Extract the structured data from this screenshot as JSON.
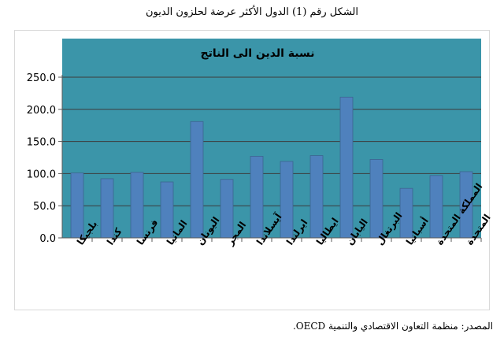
{
  "figure": {
    "caption": "الشكل رقم (1) الدول الأكثر عرضة لحلزون الديون",
    "source": "المصدر: منظمة التعاون الاقتصادي والتنمية OECD."
  },
  "chart_data": {
    "type": "bar",
    "title": "نسبة الدين الى الناتج",
    "xlabel": "",
    "ylabel": "",
    "categories": [
      "بلجيكا",
      "كندا",
      "فرنسا",
      "المانيا",
      "اليونان",
      "المجر",
      "آيسلاندا",
      "ايرلندا",
      "ايطاليا",
      "اليابان",
      "البرتغال",
      "أسبانيا",
      "المملكة المتحدة",
      "الولايات المتحدة"
    ],
    "values": [
      101,
      92,
      102,
      87,
      181,
      91,
      127,
      119,
      128,
      219,
      122,
      77,
      97,
      103
    ],
    "yticks": [
      "0.0",
      "50.0",
      "100.0",
      "150.0",
      "200.0",
      "250.0"
    ],
    "ylim": [
      0,
      250
    ],
    "grid": true,
    "legend": "none",
    "colors": {
      "bar": "#4f81bd",
      "bar_edge": "#3c6590",
      "plot_bg": "#3b95a9",
      "grid": "#3c3c3c",
      "axis": "#595959",
      "text": "#000000"
    }
  }
}
